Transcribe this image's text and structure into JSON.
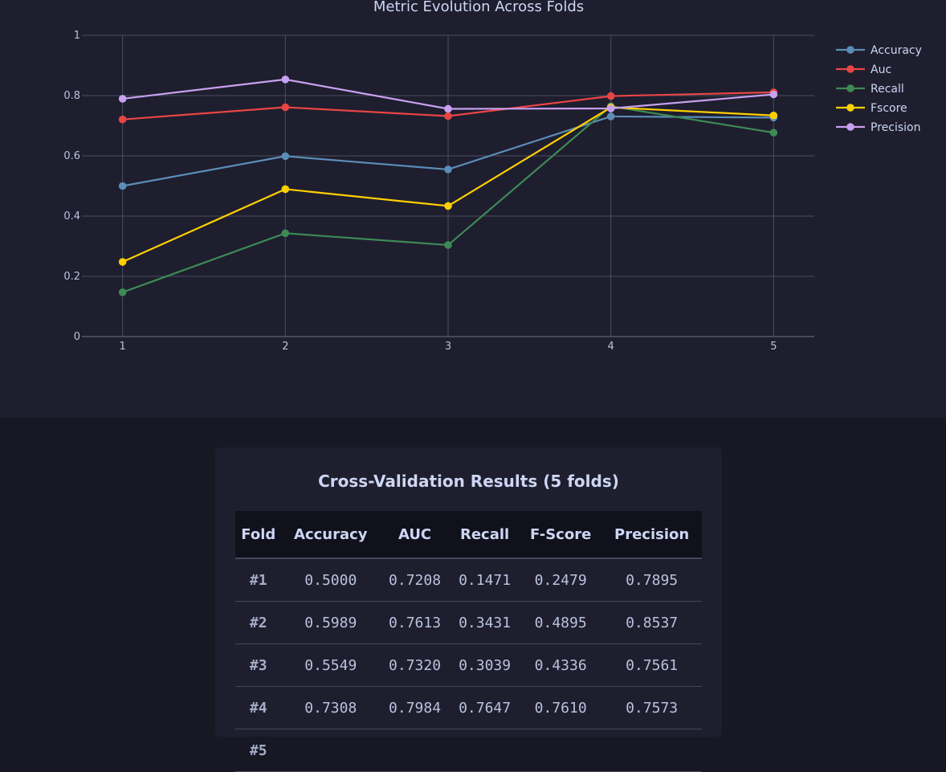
{
  "chart_data": {
    "type": "line",
    "title": "Metric Evolution Across Folds",
    "x": [
      1,
      2,
      3,
      4,
      5
    ],
    "xlim": [
      0.75,
      5.25
    ],
    "ylim": [
      0,
      1
    ],
    "yticks": [
      0,
      0.2,
      0.4,
      0.6,
      0.8,
      1
    ],
    "ytick_labels": [
      "0",
      "0.2",
      "0.4",
      "0.6",
      "0.8",
      "1"
    ],
    "grid": true,
    "legend_position": "top-right",
    "series": [
      {
        "name": "Accuracy",
        "color": "#5b8db8",
        "values": [
          0.5,
          0.5989,
          0.5549,
          0.7308,
          0.727
        ]
      },
      {
        "name": "Auc",
        "color": "#e84545",
        "values": [
          0.7208,
          0.7613,
          0.732,
          0.7984,
          0.811
        ]
      },
      {
        "name": "Recall",
        "color": "#3d8a55",
        "values": [
          0.1471,
          0.3431,
          0.3039,
          0.7647,
          0.677
        ]
      },
      {
        "name": "Fscore",
        "color": "#ffd000",
        "values": [
          0.2479,
          0.4895,
          0.4336,
          0.761,
          0.734
        ]
      },
      {
        "name": "Precision",
        "color": "#c9a0f0",
        "values": [
          0.7895,
          0.8537,
          0.7561,
          0.7573,
          0.804
        ]
      }
    ]
  },
  "results": {
    "title": "Cross-Validation Results (5 folds)",
    "headers": [
      "Fold",
      "Accuracy",
      "AUC",
      "Recall",
      "F-Score",
      "Precision"
    ],
    "rows": [
      {
        "fold": "#1",
        "accuracy": "0.5000",
        "auc": "0.7208",
        "recall": "0.1471",
        "fscore": "0.2479",
        "precision": "0.7895"
      },
      {
        "fold": "#2",
        "accuracy": "0.5989",
        "auc": "0.7613",
        "recall": "0.3431",
        "fscore": "0.4895",
        "precision": "0.8537"
      },
      {
        "fold": "#3",
        "accuracy": "0.5549",
        "auc": "0.7320",
        "recall": "0.3039",
        "fscore": "0.4336",
        "precision": "0.7561"
      },
      {
        "fold": "#4",
        "accuracy": "0.7308",
        "auc": "0.7984",
        "recall": "0.7647",
        "fscore": "0.7610",
        "precision": "0.7573"
      },
      {
        "fold": "#5",
        "accuracy": "",
        "auc": "",
        "recall": "",
        "fscore": "",
        "precision": ""
      }
    ]
  }
}
